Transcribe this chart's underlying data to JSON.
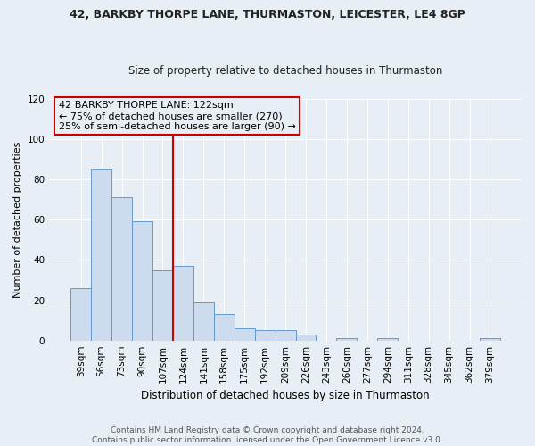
{
  "title": "42, BARKBY THORPE LANE, THURMASTON, LEICESTER, LE4 8GP",
  "subtitle": "Size of property relative to detached houses in Thurmaston",
  "xlabel": "Distribution of detached houses by size in Thurmaston",
  "ylabel": "Number of detached properties",
  "categories": [
    "39sqm",
    "56sqm",
    "73sqm",
    "90sqm",
    "107sqm",
    "124sqm",
    "141sqm",
    "158sqm",
    "175sqm",
    "192sqm",
    "209sqm",
    "226sqm",
    "243sqm",
    "260sqm",
    "277sqm",
    "294sqm",
    "311sqm",
    "328sqm",
    "345sqm",
    "362sqm",
    "379sqm"
  ],
  "values": [
    26,
    85,
    71,
    59,
    35,
    37,
    19,
    13,
    6,
    5,
    5,
    3,
    0,
    1,
    0,
    1,
    0,
    0,
    0,
    0,
    1
  ],
  "bar_color": "#ccdcee",
  "bar_edge_color": "#6699cc",
  "annotation_text": "42 BARKBY THORPE LANE: 122sqm\n← 75% of detached houses are smaller (270)\n25% of semi-detached houses are larger (90) →",
  "annotation_box_color": "#cc0000",
  "vline_x": 5,
  "vline_color": "#cc0000",
  "ylim": [
    0,
    120
  ],
  "yticks": [
    0,
    20,
    40,
    60,
    80,
    100,
    120
  ],
  "background_color": "#e8eef5",
  "grid_color": "#ffffff",
  "footer": "Contains HM Land Registry data © Crown copyright and database right 2024.\nContains public sector information licensed under the Open Government Licence v3.0.",
  "title_fontsize": 9,
  "subtitle_fontsize": 8.5,
  "tick_fontsize": 7.5,
  "ylabel_fontsize": 8,
  "xlabel_fontsize": 8.5,
  "footer_fontsize": 6.5,
  "annotation_fontsize": 8
}
